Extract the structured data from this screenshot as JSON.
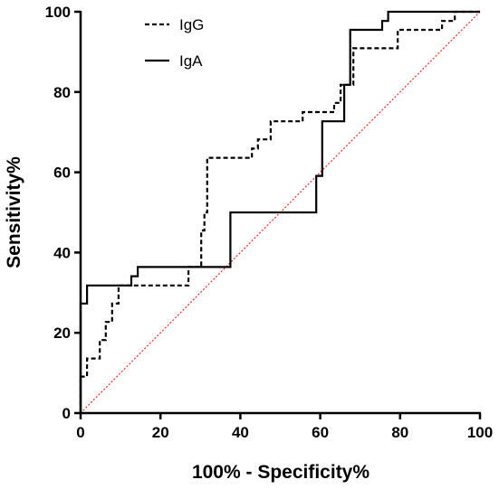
{
  "chart_data": {
    "type": "line",
    "xlabel": "100% - Specificity%",
    "ylabel": "Sensitivity%",
    "xlim": [
      0,
      100
    ],
    "ylim": [
      0,
      100
    ],
    "xticks": [
      0,
      20,
      40,
      60,
      80,
      100
    ],
    "yticks": [
      0,
      20,
      40,
      60,
      80,
      100
    ],
    "x_tick_labels": [
      "0",
      "20",
      "40",
      "60",
      "80",
      "100"
    ],
    "y_tick_labels": [
      "0",
      "20",
      "40",
      "60",
      "80",
      "100"
    ],
    "grid": false,
    "legend_position": "top-left",
    "series": [
      {
        "name": "IgG",
        "style": "dashed",
        "color": "#000000",
        "points": [
          [
            0,
            0
          ],
          [
            0,
            9.1
          ],
          [
            1.6,
            9.1
          ],
          [
            1.6,
            13.6
          ],
          [
            4.8,
            13.6
          ],
          [
            4.8,
            18.2
          ],
          [
            6.3,
            18.2
          ],
          [
            6.3,
            22.7
          ],
          [
            7.9,
            22.7
          ],
          [
            7.9,
            27.3
          ],
          [
            9.5,
            27.3
          ],
          [
            9.5,
            31.8
          ],
          [
            27.0,
            31.8
          ],
          [
            27.0,
            36.4
          ],
          [
            30.2,
            36.4
          ],
          [
            30.2,
            45.5
          ],
          [
            31.0,
            45.5
          ],
          [
            31.0,
            50.0
          ],
          [
            31.7,
            50.0
          ],
          [
            31.7,
            63.6
          ],
          [
            42.9,
            63.6
          ],
          [
            42.9,
            65.9
          ],
          [
            44.4,
            65.9
          ],
          [
            44.4,
            68.2
          ],
          [
            47.6,
            68.2
          ],
          [
            47.6,
            72.7
          ],
          [
            55.6,
            72.7
          ],
          [
            55.6,
            75.0
          ],
          [
            63.5,
            75.0
          ],
          [
            63.5,
            77.3
          ],
          [
            65.1,
            77.3
          ],
          [
            65.1,
            81.8
          ],
          [
            68.3,
            81.8
          ],
          [
            68.3,
            90.9
          ],
          [
            79.4,
            90.9
          ],
          [
            79.4,
            95.5
          ],
          [
            90.5,
            95.5
          ],
          [
            90.5,
            97.7
          ],
          [
            93.7,
            97.7
          ],
          [
            93.7,
            100
          ],
          [
            100,
            100
          ]
        ]
      },
      {
        "name": "IgA",
        "style": "solid",
        "color": "#000000",
        "points": [
          [
            0,
            0
          ],
          [
            0,
            27.3
          ],
          [
            1.6,
            27.3
          ],
          [
            1.6,
            31.8
          ],
          [
            12.7,
            31.8
          ],
          [
            12.7,
            34.1
          ],
          [
            14.3,
            34.1
          ],
          [
            14.3,
            36.4
          ],
          [
            37.5,
            36.4
          ],
          [
            37.5,
            50.0
          ],
          [
            59.0,
            50.0
          ],
          [
            59.0,
            59.1
          ],
          [
            60.5,
            59.1
          ],
          [
            60.5,
            72.7
          ],
          [
            66.0,
            72.7
          ],
          [
            66.0,
            81.8
          ],
          [
            67.5,
            81.8
          ],
          [
            67.5,
            95.5
          ],
          [
            75.5,
            95.5
          ],
          [
            75.5,
            97.7
          ],
          [
            77.0,
            97.7
          ],
          [
            77.0,
            100
          ],
          [
            100,
            100
          ]
        ]
      }
    ],
    "reference_line": {
      "points": [
        [
          0,
          0
        ],
        [
          100,
          100
        ]
      ],
      "style": "dotted",
      "color": "#e8332a"
    }
  }
}
